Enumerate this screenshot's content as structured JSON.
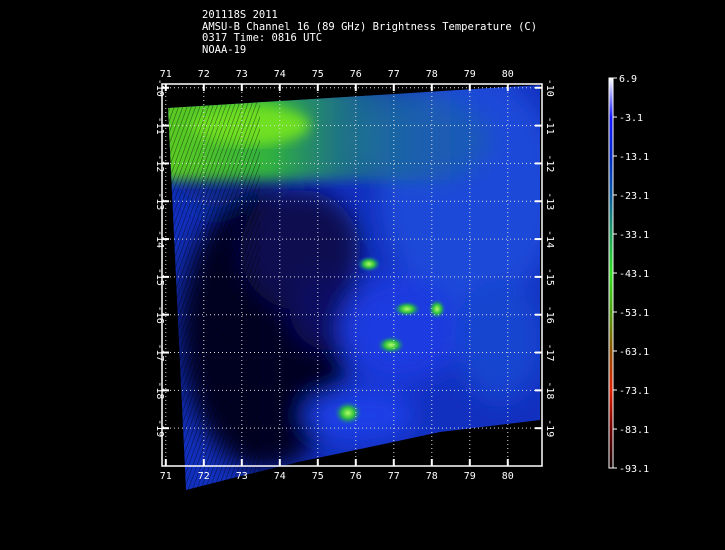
{
  "header": {
    "line1": "201118S 2011",
    "line2": "AMSU-B Channel 16 (89 GHz) Brightness Temperature (C)",
    "line3": "0317 Time: 0816 UTC",
    "line4": "NOAA-19"
  },
  "map": {
    "lon_ticks": [
      "71",
      "72",
      "73",
      "74",
      "75",
      "76",
      "77",
      "78",
      "79",
      "80"
    ],
    "lat_ticks": [
      "-10",
      "-11",
      "-12",
      "-13",
      "-14",
      "-15",
      "-16",
      "-17",
      "-18",
      "-19"
    ],
    "lon_range": [
      70.9,
      80.9
    ],
    "lat_range": [
      -9.9,
      -20.0
    ]
  },
  "colorbar": {
    "labels": [
      "6.9",
      "-3.1",
      "-13.1",
      "-23.1",
      "-33.1",
      "-43.1",
      "-53.1",
      "-63.1",
      "-73.1",
      "-83.1",
      "-93.1"
    ],
    "colors": [
      "#ffffff",
      "#1818ff",
      "#0028c8",
      "#0a5aa0",
      "#20a060",
      "#30e020",
      "#50a010",
      "#905000",
      "#e02000",
      "#700000",
      "#100000"
    ]
  }
}
